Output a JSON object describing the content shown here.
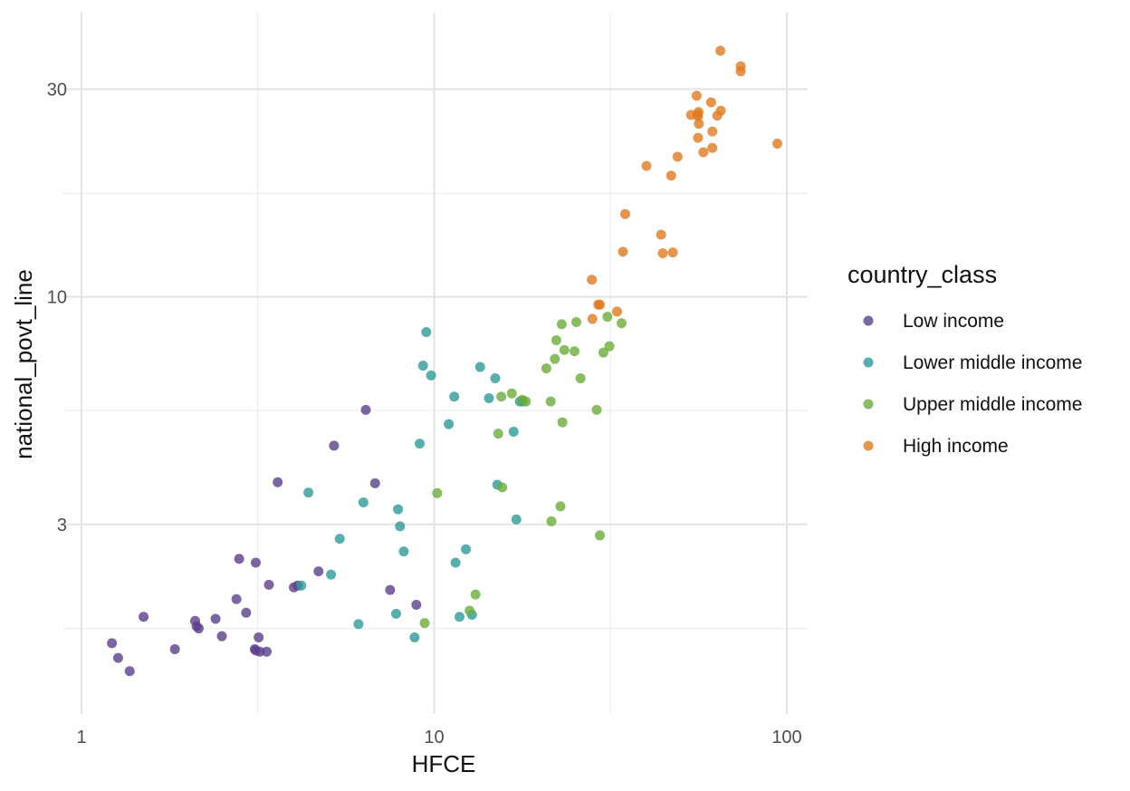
{
  "chart_data": {
    "type": "scatter",
    "xlabel": "HFCE",
    "ylabel": "national_povt_line",
    "x_scale": "log10",
    "y_scale": "log10",
    "xlim": [
      1,
      100
    ],
    "ylim": [
      1.1,
      45
    ],
    "x_ticks": [
      {
        "value": 1,
        "label": "1"
      },
      {
        "value": 10,
        "label": "10"
      },
      {
        "value": 100,
        "label": "100"
      }
    ],
    "y_ticks": [
      {
        "value": 3,
        "label": "3"
      },
      {
        "value": 10,
        "label": "10"
      },
      {
        "value": 30,
        "label": "30"
      }
    ],
    "x_minor_gridlines": [
      3.16,
      31.6
    ],
    "y_minor_gridlines": [
      1.73,
      5.48,
      17.3
    ],
    "grid": true,
    "legend": {
      "title": "country_class",
      "position": "right"
    },
    "series": [
      {
        "name": "Low income",
        "color": "#5c3f8c",
        "points": [
          [
            1.22,
            1.6
          ],
          [
            1.27,
            1.48
          ],
          [
            1.37,
            1.38
          ],
          [
            1.5,
            1.84
          ],
          [
            1.84,
            1.55
          ],
          [
            2.1,
            1.8
          ],
          [
            2.12,
            1.75
          ],
          [
            2.15,
            1.73
          ],
          [
            2.4,
            1.82
          ],
          [
            2.5,
            1.66
          ],
          [
            2.75,
            2.02
          ],
          [
            2.8,
            2.5
          ],
          [
            2.93,
            1.88
          ],
          [
            3.1,
            1.55
          ],
          [
            3.12,
            1.54
          ],
          [
            3.2,
            1.53
          ],
          [
            3.12,
            2.45
          ],
          [
            3.18,
            1.65
          ],
          [
            3.35,
            1.53
          ],
          [
            3.4,
            2.18
          ],
          [
            3.6,
            3.75
          ],
          [
            4.0,
            2.15
          ],
          [
            4.1,
            2.17
          ],
          [
            4.7,
            2.34
          ],
          [
            5.2,
            4.55
          ],
          [
            6.4,
            5.5
          ],
          [
            6.8,
            3.73
          ],
          [
            7.5,
            2.12
          ],
          [
            8.9,
            1.96
          ]
        ]
      },
      {
        "name": "Lower middle income",
        "color": "#2d9b99",
        "points": [
          [
            4.2,
            2.17
          ],
          [
            4.4,
            3.55
          ],
          [
            5.1,
            2.3
          ],
          [
            5.4,
            2.78
          ],
          [
            6.1,
            1.77
          ],
          [
            6.3,
            3.37
          ],
          [
            7.8,
            1.87
          ],
          [
            7.9,
            3.25
          ],
          [
            8.0,
            2.97
          ],
          [
            8.2,
            2.6
          ],
          [
            8.8,
            1.65
          ],
          [
            9.1,
            4.6
          ],
          [
            9.3,
            6.95
          ],
          [
            9.5,
            8.3
          ],
          [
            9.8,
            6.6
          ],
          [
            11.0,
            5.1
          ],
          [
            11.4,
            5.9
          ],
          [
            11.5,
            2.45
          ],
          [
            11.8,
            1.84
          ],
          [
            12.3,
            2.63
          ],
          [
            12.8,
            1.86
          ],
          [
            13.5,
            6.9
          ],
          [
            14.3,
            5.85
          ],
          [
            14.9,
            6.5
          ],
          [
            15.1,
            3.7
          ],
          [
            16.8,
            4.9
          ],
          [
            17.1,
            3.08
          ],
          [
            17.5,
            5.75
          ],
          [
            17.8,
            5.75
          ]
        ]
      },
      {
        "name": "Upper middle income",
        "color": "#6bac3a",
        "points": [
          [
            9.4,
            1.78
          ],
          [
            10.2,
            3.54
          ],
          [
            12.6,
            1.9
          ],
          [
            13.1,
            2.07
          ],
          [
            15.2,
            4.85
          ],
          [
            15.5,
            5.9
          ],
          [
            15.6,
            3.65
          ],
          [
            16.6,
            6.0
          ],
          [
            17.8,
            5.8
          ],
          [
            18.2,
            5.75
          ],
          [
            20.8,
            6.85
          ],
          [
            21.4,
            5.75
          ],
          [
            21.5,
            3.05
          ],
          [
            22.0,
            7.2
          ],
          [
            22.2,
            7.95
          ],
          [
            22.8,
            3.3
          ],
          [
            23.0,
            8.65
          ],
          [
            23.1,
            5.15
          ],
          [
            23.4,
            7.55
          ],
          [
            25.0,
            7.5
          ],
          [
            25.3,
            8.75
          ],
          [
            26.0,
            6.5
          ],
          [
            28.9,
            5.5
          ],
          [
            29.5,
            2.83
          ],
          [
            30.2,
            7.45
          ],
          [
            31.0,
            9.0
          ],
          [
            31.4,
            7.7
          ],
          [
            34.0,
            8.7
          ]
        ]
      },
      {
        "name": "High income",
        "color": "#e07a1f",
        "points": [
          [
            28.0,
            10.95
          ],
          [
            28.1,
            8.9
          ],
          [
            29.2,
            9.6
          ],
          [
            29.5,
            9.6
          ],
          [
            33.0,
            9.25
          ],
          [
            34.3,
            12.7
          ],
          [
            34.8,
            15.5
          ],
          [
            40.0,
            20.0
          ],
          [
            44.0,
            13.9
          ],
          [
            44.5,
            12.6
          ],
          [
            47.0,
            19.0
          ],
          [
            47.5,
            12.65
          ],
          [
            49.0,
            21.0
          ],
          [
            53.5,
            26.2
          ],
          [
            55.5,
            29.0
          ],
          [
            55.8,
            26.3
          ],
          [
            56.0,
            26.0
          ],
          [
            56.2,
            26.6
          ],
          [
            56.3,
            25.0
          ],
          [
            56.0,
            23.2
          ],
          [
            58.0,
            21.5
          ],
          [
            61.0,
            28.0
          ],
          [
            61.5,
            22.0
          ],
          [
            61.5,
            24.0
          ],
          [
            63.5,
            26.1
          ],
          [
            65.0,
            26.8
          ],
          [
            64.8,
            36.8
          ],
          [
            74.0,
            33.9
          ],
          [
            74.0,
            33.0
          ],
          [
            94.0,
            22.5
          ]
        ]
      }
    ]
  }
}
